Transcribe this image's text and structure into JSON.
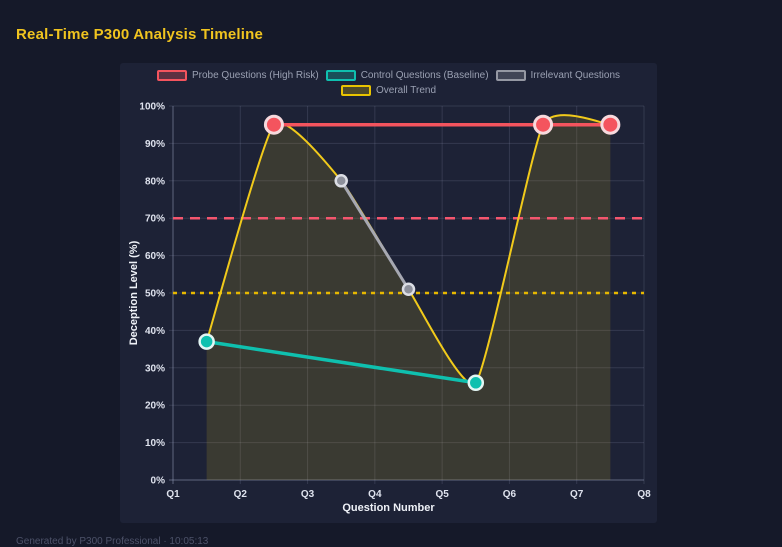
{
  "page": {
    "title": "Real-Time P300 Analysis Timeline",
    "footer": "Generated by P300 Professional · 10:05:13"
  },
  "legend": {
    "items": [
      {
        "label": "Probe Questions (High Risk)",
        "color": "#f4545e",
        "fill": "rgba(244,84,94,0.3)"
      },
      {
        "label": "Control Questions (Baseline)",
        "color": "#0fc0af",
        "fill": "rgba(15,192,175,0.3)"
      },
      {
        "label": "Irrelevant Questions",
        "color": "#9598a3",
        "fill": "rgba(149,152,163,0.3)"
      },
      {
        "label": "Overall Trend",
        "color": "#e9c400",
        "fill": "rgba(233,196,0,0.25)"
      }
    ]
  },
  "chart_data": {
    "type": "line",
    "title": "Real-Time P300 Analysis Timeline",
    "xlabel": "Question Number",
    "ylabel": "Deception Level (%)",
    "x_ticks": [
      "Q1",
      "Q2",
      "Q3",
      "Q4",
      "Q5",
      "Q6",
      "Q7",
      "Q8"
    ],
    "x_range": [
      1,
      8
    ],
    "y_ticks": [
      "0%",
      "10%",
      "20%",
      "30%",
      "40%",
      "50%",
      "60%",
      "70%",
      "80%",
      "90%",
      "100%"
    ],
    "ylim": [
      0,
      100
    ],
    "grid": true,
    "legend_position": "top",
    "series": [
      {
        "name": "Overall Trend",
        "type": "smooth-area",
        "color": "#f1ca1b",
        "fill_color": "rgba(241,202,27,0.14)",
        "line_width": 2,
        "point_radius": 0,
        "x": [
          1.5,
          2.5,
          3.5,
          4.5,
          5.5,
          6.5,
          7.5
        ],
        "values": [
          37,
          95,
          80,
          51,
          26,
          95,
          95
        ]
      },
      {
        "name": "Irrelevant Questions",
        "type": "line",
        "color": "#a6a8b2",
        "point_color": "#8d909b",
        "ring": "#dcdee5",
        "line_width": 3,
        "point_radius": 5.5,
        "x": [
          3.5,
          4.5
        ],
        "values": [
          80,
          51
        ]
      },
      {
        "name": "Control Questions (Baseline)",
        "type": "line",
        "color": "#0fc0af",
        "point_color": "#0fc0af",
        "ring": "#e3f6f4",
        "line_width": 3.5,
        "point_radius": 7,
        "x": [
          1.5,
          5.5
        ],
        "values": [
          37,
          26
        ]
      },
      {
        "name": "Probe Questions (High Risk)",
        "type": "line",
        "color": "#f4545e",
        "point_color": "#f4545e",
        "ring": "#f6d9dd",
        "line_width": 3.5,
        "point_radius": 8.5,
        "x": [
          2.5,
          6.5,
          7.5
        ],
        "values": [
          95,
          95,
          95
        ]
      }
    ],
    "thresholds": [
      {
        "value": 70,
        "color": "#f4566e",
        "dash": "10 7"
      },
      {
        "value": 50,
        "color": "#e7b800",
        "dash": "4 5"
      }
    ]
  }
}
